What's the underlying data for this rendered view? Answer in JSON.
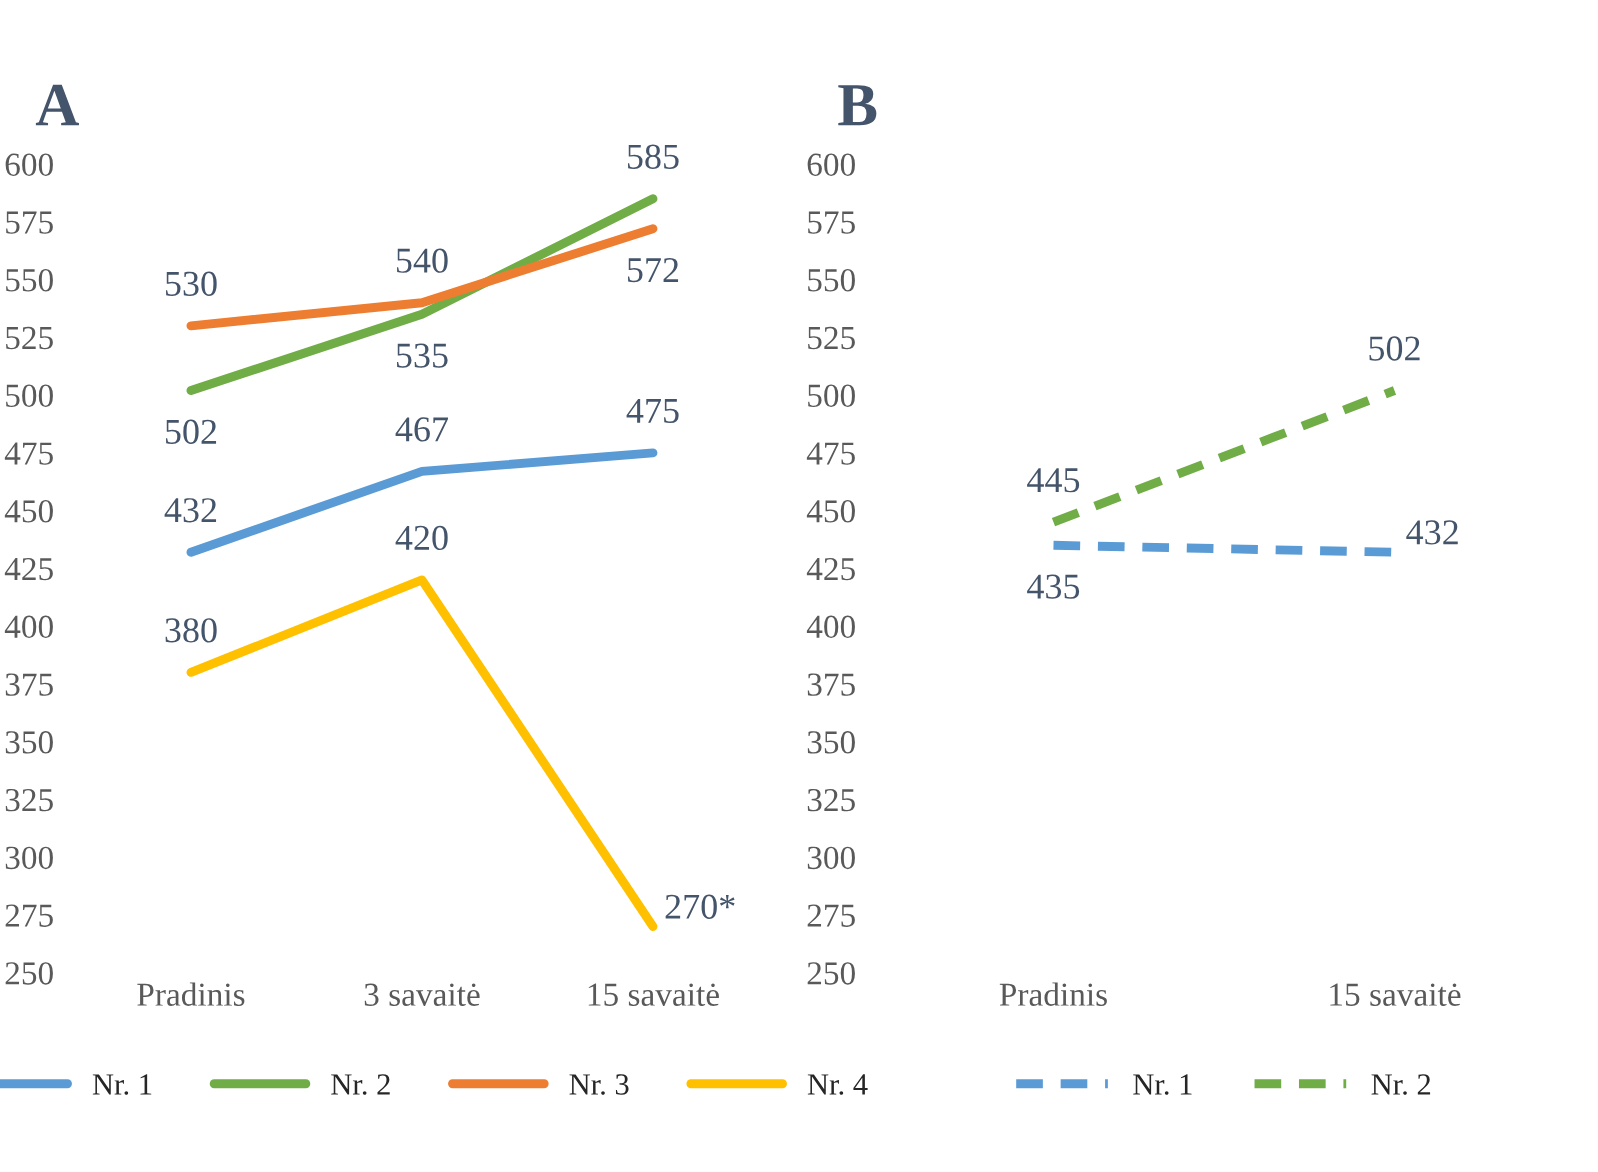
{
  "chart_data": [
    {
      "type": "line",
      "title": "A",
      "categories": [
        "Pradinis",
        "3 savaitė",
        "15 savaitė"
      ],
      "ylim": [
        250,
        600
      ],
      "yticks": [
        250,
        275,
        300,
        325,
        350,
        375,
        400,
        425,
        450,
        475,
        500,
        525,
        550,
        575,
        600
      ],
      "grid": false,
      "legend": "bottom",
      "line_style": "solid",
      "marker": "none",
      "series": [
        {
          "name": "Nr. 1",
          "color": "#5b9bd5",
          "values": [
            432,
            467,
            475
          ],
          "value_labels": [
            "432",
            "467",
            "475"
          ]
        },
        {
          "name": "Nr. 2",
          "color": "#70ad47",
          "values": [
            502,
            535,
            585
          ],
          "value_labels": [
            "502",
            "535",
            "585"
          ]
        },
        {
          "name": "Nr. 3",
          "color": "#ed7d31",
          "values": [
            530,
            540,
            572
          ],
          "value_labels": [
            "530",
            "540",
            "572"
          ]
        },
        {
          "name": "Nr. 4",
          "color": "#ffc000",
          "values": [
            380,
            420,
            270
          ],
          "value_labels": [
            "380",
            "420",
            "270*"
          ]
        }
      ]
    },
    {
      "type": "line",
      "title": "B",
      "categories": [
        "Pradinis",
        "15 savaitė"
      ],
      "ylim": [
        250,
        600
      ],
      "yticks": [
        250,
        275,
        300,
        325,
        350,
        375,
        400,
        425,
        450,
        475,
        500,
        525,
        550,
        575,
        600
      ],
      "grid": false,
      "legend": "bottom",
      "line_style": "dashed",
      "marker": "none",
      "series": [
        {
          "name": "Nr. 1",
          "color": "#5b9bd5",
          "values": [
            435,
            432
          ],
          "value_labels": [
            "435",
            "432"
          ]
        },
        {
          "name": "Nr. 2",
          "color": "#70ad47",
          "values": [
            445,
            502
          ],
          "value_labels": [
            "445",
            "502"
          ]
        }
      ]
    }
  ]
}
